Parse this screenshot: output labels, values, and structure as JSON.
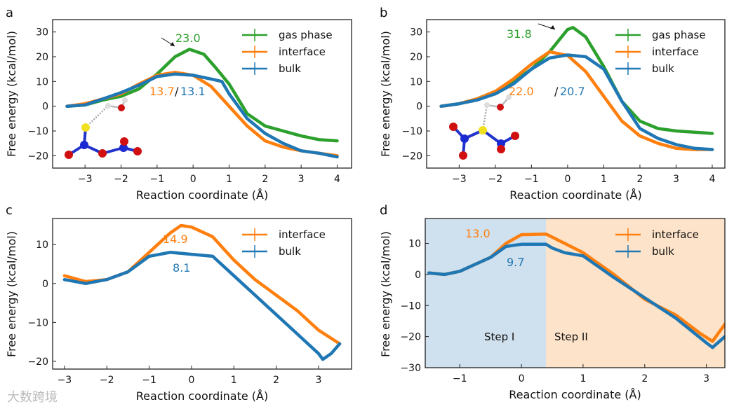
{
  "colors": {
    "gas phase": "#2ca02c",
    "interface": "#ff7f0e",
    "bulk": "#1f77b4",
    "step1_bg": "#cfe0ee",
    "step2_bg": "#fde3c9"
  },
  "watermark": "大数跨境",
  "chart_data": [
    {
      "panel": "a",
      "type": "line",
      "xlabel": "Reaction coordinate (Å)",
      "ylabel": "Free energy (kcal/mol)",
      "xlim": [
        -3.9,
        4.4
      ],
      "ylim": [
        -25,
        35
      ],
      "xticks": [
        -3,
        -2,
        -1,
        0,
        1,
        2,
        3,
        4
      ],
      "yticks": [
        -20,
        -10,
        0,
        10,
        20,
        30
      ],
      "legend": "top-right",
      "annotations": {
        "gas": "23.0",
        "interface": "13.7",
        "sep": "/",
        "bulk": "13.1"
      },
      "series": [
        {
          "name": "gas phase",
          "x": [
            -3.5,
            -3,
            -2.5,
            -2,
            -1.5,
            -1,
            -0.5,
            -0.1,
            0.3,
            0.6,
            1,
            1.5,
            2,
            2.5,
            3,
            3.5,
            4
          ],
          "y": [
            0,
            0.5,
            2.5,
            4,
            7,
            13,
            20,
            23,
            21,
            16,
            9,
            -3,
            -8,
            -10,
            -12,
            -13.5,
            -14
          ]
        },
        {
          "name": "interface",
          "x": [
            -3.5,
            -3,
            -2.5,
            -2,
            -1.5,
            -1,
            -0.5,
            0,
            0.5,
            1,
            1.5,
            2,
            2.5,
            3,
            3.5,
            4
          ],
          "y": [
            0,
            1,
            3,
            5,
            9,
            12.5,
            13.7,
            12.5,
            8,
            0,
            -8,
            -14,
            -16.5,
            -18,
            -19,
            -20
          ]
        },
        {
          "name": "bulk",
          "x": [
            -3.5,
            -3,
            -2.5,
            -2,
            -1.5,
            -1,
            -0.5,
            0,
            0.5,
            0.8,
            1,
            1.5,
            2,
            2.5,
            3,
            3.5,
            4
          ],
          "y": [
            0,
            0.5,
            3,
            5.5,
            8.5,
            12,
            13,
            12.5,
            11,
            10,
            5,
            -5,
            -11,
            -15,
            -18,
            -19,
            -20.5
          ]
        }
      ]
    },
    {
      "panel": "b",
      "type": "line",
      "xlabel": "Reaction coordinate (Å)",
      "ylabel": "Free energy (kcal/mol)",
      "xlim": [
        -3.9,
        4.35
      ],
      "ylim": [
        -25,
        35
      ],
      "xticks": [
        -3,
        -2,
        -1,
        0,
        1,
        2,
        3,
        4
      ],
      "yticks": [
        -20,
        -10,
        0,
        10,
        20,
        30
      ],
      "legend": "top-right",
      "annotations": {
        "gas": "31.8",
        "interface": "22.0",
        "sep": "/",
        "bulk": "20.7"
      },
      "series": [
        {
          "name": "gas phase",
          "x": [
            -3.5,
            -3,
            -2.5,
            -2,
            -1.5,
            -1,
            -0.5,
            0,
            0.15,
            0.5,
            1,
            1.5,
            2,
            2.5,
            3,
            3.5,
            4
          ],
          "y": [
            0,
            1,
            3,
            6,
            10,
            15,
            22,
            31,
            31.8,
            28,
            16,
            2,
            -6,
            -9,
            -10,
            -10.5,
            -11
          ]
        },
        {
          "name": "interface",
          "x": [
            -3.5,
            -3,
            -2.5,
            -2,
            -1.5,
            -1,
            -0.5,
            0,
            0.5,
            1,
            1.5,
            2,
            2.5,
            3,
            3.5,
            4
          ],
          "y": [
            0,
            1,
            3,
            6,
            11,
            17,
            22,
            20.5,
            14,
            4,
            -6,
            -12,
            -15,
            -17,
            -17.5,
            -17.5
          ]
        },
        {
          "name": "bulk",
          "x": [
            -3.5,
            -3,
            -2.5,
            -2,
            -1.5,
            -1,
            -0.5,
            0,
            0.5,
            1,
            1.5,
            2,
            2.5,
            3,
            3.5,
            4
          ],
          "y": [
            0,
            1,
            2.5,
            5,
            9,
            15,
            19.5,
            20.7,
            20,
            15,
            2,
            -9,
            -13,
            -15.5,
            -17,
            -17.5
          ]
        }
      ]
    },
    {
      "panel": "c",
      "type": "line",
      "xlabel": "Reaction coordinate (Å)",
      "ylabel": "Free energy (kcal/mol)",
      "xlim": [
        -3.28,
        3.78
      ],
      "ylim": [
        -22,
        16.7
      ],
      "xticks": [
        -3,
        -2,
        -1,
        0,
        1,
        2,
        3
      ],
      "yticks": [
        -20,
        -10,
        0,
        10
      ],
      "legend": "top-right",
      "annotations": {
        "interface": "14.9",
        "bulk": "8.1"
      },
      "series": [
        {
          "name": "interface",
          "x": [
            -3,
            -2.5,
            -2,
            -1.5,
            -1,
            -0.5,
            -0.25,
            0,
            0.5,
            1,
            1.5,
            2,
            2.5,
            3,
            3.5
          ],
          "y": [
            2,
            0.5,
            1,
            3,
            8,
            13,
            14.9,
            14.5,
            12,
            6,
            1,
            -3,
            -7,
            -12,
            -15.5
          ]
        },
        {
          "name": "bulk",
          "x": [
            -3,
            -2.5,
            -2,
            -1.5,
            -1,
            -0.5,
            0,
            0.5,
            1,
            1.5,
            2,
            2.5,
            3,
            3.1,
            3.3,
            3.5
          ],
          "y": [
            1,
            0,
            1,
            3,
            7,
            8,
            7.5,
            7,
            2,
            -3,
            -8,
            -13,
            -18,
            -19.5,
            -18,
            -15.5
          ]
        }
      ]
    },
    {
      "panel": "d",
      "type": "line",
      "xlabel": "Reaction coordinate (Å)",
      "ylabel": "Free energy (kcal/mol)",
      "xlim": [
        -1.56,
        3.3
      ],
      "ylim": [
        -30,
        18
      ],
      "xticks": [
        -1,
        0,
        1,
        2,
        3
      ],
      "yticks": [
        -30,
        -20,
        -10,
        0,
        10
      ],
      "legend": "top-right",
      "regions": [
        {
          "label": "Step I",
          "x": [
            -1.56,
            0.4
          ]
        },
        {
          "label": "Step II",
          "x": [
            0.4,
            3.3
          ]
        }
      ],
      "annotations": {
        "interface": "13.0",
        "bulk": "9.7"
      },
      "series": [
        {
          "name": "interface",
          "x": [
            -1.5,
            -1.25,
            -1,
            -0.5,
            -0.25,
            0,
            0.4,
            0.5,
            1,
            1.5,
            2,
            2.5,
            2.9,
            3.1,
            3.3
          ],
          "y": [
            0.5,
            0,
            1,
            5.5,
            10,
            12.8,
            13,
            12,
            7,
            0,
            -8,
            -13,
            -19,
            -21.5,
            -16
          ]
        },
        {
          "name": "bulk",
          "x": [
            -1.5,
            -1.25,
            -1,
            -0.5,
            -0.25,
            0,
            0.4,
            0.5,
            0.7,
            1,
            1.5,
            2,
            2.5,
            3,
            3.1,
            3.3
          ],
          "y": [
            0.5,
            0,
            1,
            5.5,
            9,
            9.7,
            9.7,
            8.5,
            7,
            6,
            -1,
            -7.5,
            -14,
            -22,
            -23.5,
            -20
          ]
        }
      ]
    }
  ]
}
